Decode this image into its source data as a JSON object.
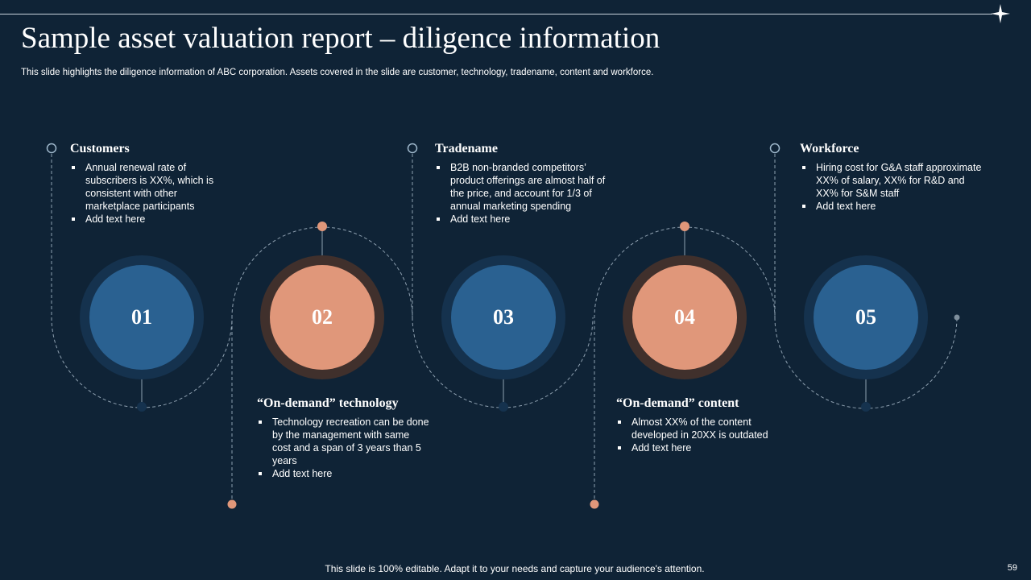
{
  "slide": {
    "title": "Sample asset valuation report – diligence information",
    "subtitle": "This slide highlights the diligence information of ABC corporation. Assets covered in the slide are customer, technology, tradename, content and workforce.",
    "footer": "This slide is 100% editable. Adapt it to your needs and capture your audience's attention.",
    "page_number": "59"
  },
  "steps": [
    {
      "number": "01",
      "heading": "Customers",
      "color": "#2a6191",
      "bullets": [
        "Annual renewal rate of subscribers is XX%, which is consistent with other marketplace participants",
        "Add text here"
      ]
    },
    {
      "number": "02",
      "heading": "“On-demand” technology",
      "color": "#e0977a",
      "bullets": [
        "Technology recreation can be done by the management with same cost and a span of 3 years than 5 years",
        "Add text here"
      ]
    },
    {
      "number": "03",
      "heading": "Tradename",
      "color": "#2a6191",
      "bullets": [
        "B2B non-branded competitors’ product offerings are almost half of the price, and account for 1/3 of annual marketing spending",
        "Add text here"
      ]
    },
    {
      "number": "04",
      "heading": "“On-demand” content",
      "color": "#e0977a",
      "bullets": [
        "Almost XX% of the content developed in 20XX is outdated",
        "Add text here"
      ]
    },
    {
      "number": "05",
      "heading": "Workforce",
      "color": "#2a6191",
      "bullets": [
        "Hiring cost for G&A staff approximate XX% of salary, XX% for R&D and XX% for S&M staff",
        "Add text here"
      ]
    }
  ],
  "colors": {
    "background": "#0f2336",
    "accent_blue": "#2a6191",
    "accent_orange": "#e0977a"
  }
}
